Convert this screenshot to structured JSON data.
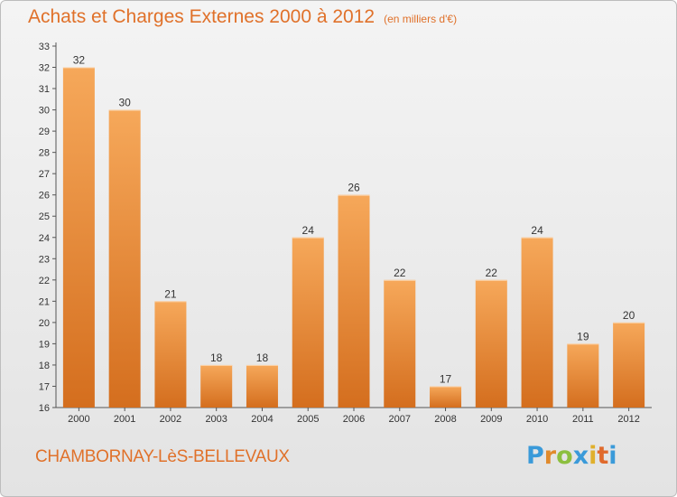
{
  "header": {
    "title": "Achats et Charges Externes 2000 à 2012",
    "unit": "(en milliers d'€)"
  },
  "footer": {
    "commune": "CHAMBORNAY-LèS-BELLEVAUX",
    "logo_letters": [
      "P",
      "r",
      "o",
      "x",
      "i",
      "t",
      "i"
    ],
    "logo_colors": [
      "#3a9ad9",
      "#e08a2c",
      "#8cbf3f",
      "#3a9ad9",
      "#e0b02c",
      "#e06a2c",
      "#3a9ad9"
    ]
  },
  "colors": {
    "bar_top": "#f6a85a",
    "bar_bottom": "#d46e1e",
    "axis": "#555555",
    "text": "#333333"
  },
  "chart_data": {
    "type": "bar",
    "title": "Achats et Charges Externes 2000 à 2012",
    "xlabel": "",
    "ylabel": "",
    "categories": [
      "2000",
      "2001",
      "2002",
      "2003",
      "2004",
      "2005",
      "2006",
      "2007",
      "2008",
      "2009",
      "2010",
      "2011",
      "2012"
    ],
    "values": [
      32,
      30,
      21,
      18,
      18,
      24,
      26,
      22,
      17,
      22,
      24,
      19,
      20
    ],
    "ylim": [
      16,
      33
    ],
    "yticks": [
      16,
      17,
      18,
      19,
      20,
      21,
      22,
      23,
      24,
      25,
      26,
      27,
      28,
      29,
      30,
      31,
      32,
      33
    ],
    "grid": false,
    "legend": "none"
  }
}
